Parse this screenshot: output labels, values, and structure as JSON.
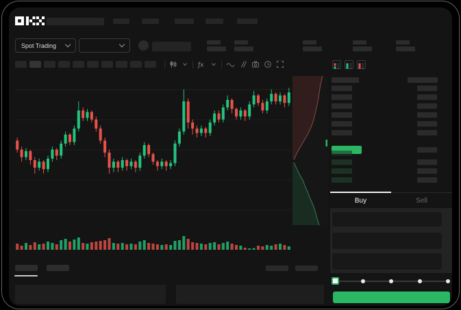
{
  "brand": {
    "name": "OKX"
  },
  "header": {
    "nav_placeholder_count": 5
  },
  "market_selector": {
    "label": "Spot Trading"
  },
  "ticker_stats": {
    "placeholder_pair_count": 5
  },
  "chart_toolbar": {
    "timeframe_placeholder_count": 10,
    "icons": [
      "chart-type-icon",
      "chevron-down-icon",
      "indicator-icon",
      "chevron-down-icon",
      "line-tool-icon",
      "parallel-lines-icon",
      "camera-icon",
      "clock-icon",
      "fullscreen-icon"
    ]
  },
  "colors": {
    "ui_green": "#2ab663",
    "candle_green": "#22c47e",
    "candle_red": "#e8524a",
    "app_bg": "#141414",
    "grid": "#1e1e1e"
  },
  "chart_data": {
    "type": "candlestick",
    "value_scale": [
      0,
      100
    ],
    "grid": true,
    "candles": [
      [
        58,
        52,
        60,
        50
      ],
      [
        52,
        47,
        54,
        44
      ],
      [
        47,
        51,
        53,
        45
      ],
      [
        51,
        45,
        52,
        42
      ],
      [
        45,
        40,
        47,
        36
      ],
      [
        40,
        44,
        46,
        38
      ],
      [
        44,
        39,
        45,
        36
      ],
      [
        39,
        46,
        48,
        37
      ],
      [
        46,
        52,
        54,
        44
      ],
      [
        52,
        48,
        53,
        45
      ],
      [
        48,
        56,
        58,
        46
      ],
      [
        56,
        62,
        64,
        54
      ],
      [
        62,
        57,
        63,
        55
      ],
      [
        57,
        66,
        68,
        55
      ],
      [
        66,
        78,
        84,
        64
      ],
      [
        78,
        73,
        80,
        71
      ],
      [
        73,
        77,
        79,
        71
      ],
      [
        77,
        72,
        78,
        70
      ],
      [
        72,
        66,
        74,
        64
      ],
      [
        66,
        58,
        68,
        56
      ],
      [
        58,
        50,
        60,
        47
      ],
      [
        50,
        40,
        52,
        36
      ],
      [
        40,
        44,
        46,
        37
      ],
      [
        44,
        40,
        45,
        37
      ],
      [
        40,
        45,
        47,
        38
      ],
      [
        45,
        41,
        46,
        38
      ],
      [
        41,
        44,
        46,
        39
      ],
      [
        44,
        40,
        45,
        37
      ],
      [
        40,
        48,
        50,
        38
      ],
      [
        48,
        55,
        57,
        46
      ],
      [
        55,
        49,
        56,
        47
      ],
      [
        49,
        44,
        50,
        42
      ],
      [
        44,
        41,
        45,
        38
      ],
      [
        41,
        44,
        46,
        39
      ],
      [
        44,
        41,
        45,
        38
      ],
      [
        41,
        43,
        45,
        39
      ],
      [
        43,
        56,
        58,
        41
      ],
      [
        56,
        64,
        66,
        54
      ],
      [
        64,
        84,
        92,
        62
      ],
      [
        84,
        70,
        86,
        66
      ],
      [
        70,
        66,
        72,
        62
      ],
      [
        66,
        63,
        68,
        60
      ],
      [
        63,
        66,
        68,
        61
      ],
      [
        66,
        63,
        67,
        60
      ],
      [
        63,
        70,
        72,
        61
      ],
      [
        70,
        76,
        78,
        68
      ],
      [
        76,
        72,
        78,
        70
      ],
      [
        72,
        80,
        82,
        70
      ],
      [
        80,
        85,
        88,
        78
      ],
      [
        85,
        79,
        86,
        76
      ],
      [
        79,
        74,
        80,
        72
      ],
      [
        74,
        78,
        80,
        72
      ],
      [
        78,
        74,
        79,
        71
      ],
      [
        74,
        82,
        84,
        72
      ],
      [
        82,
        88,
        91,
        80
      ],
      [
        88,
        83,
        89,
        81
      ],
      [
        83,
        78,
        85,
        76
      ],
      [
        78,
        84,
        86,
        76
      ],
      [
        84,
        89,
        92,
        82
      ],
      [
        89,
        84,
        90,
        82
      ],
      [
        84,
        88,
        90,
        82
      ],
      [
        88,
        83,
        89,
        80
      ],
      [
        83,
        90,
        93,
        81
      ]
    ],
    "volumes": [
      0.45,
      0.3,
      0.5,
      0.35,
      0.55,
      0.4,
      0.45,
      0.6,
      0.5,
      0.4,
      0.7,
      0.8,
      0.6,
      0.75,
      0.9,
      0.5,
      0.45,
      0.55,
      0.6,
      0.65,
      0.7,
      0.85,
      0.5,
      0.45,
      0.5,
      0.4,
      0.45,
      0.4,
      0.6,
      0.7,
      0.5,
      0.45,
      0.4,
      0.35,
      0.4,
      0.35,
      0.65,
      0.7,
      1.0,
      0.8,
      0.55,
      0.5,
      0.45,
      0.4,
      0.5,
      0.55,
      0.4,
      0.5,
      0.6,
      0.45,
      0.35,
      0.3,
      0.15,
      0.1,
      0.12,
      0.3,
      0.25,
      0.35,
      0.3,
      0.4,
      0.45,
      0.35,
      0.25
    ]
  },
  "depth_data": {
    "asks": [
      [
        0.86,
        0
      ],
      [
        0.8,
        0.06
      ],
      [
        0.76,
        0.12
      ],
      [
        0.72,
        0.18
      ],
      [
        0.66,
        0.24
      ],
      [
        0.6,
        0.3
      ],
      [
        0.52,
        0.35
      ],
      [
        0.44,
        0.39
      ],
      [
        0.34,
        0.43
      ],
      [
        0.24,
        0.47
      ],
      [
        0.12,
        0.52
      ],
      [
        0.04,
        0.56
      ]
    ],
    "bids": [
      [
        0.04,
        0.58
      ],
      [
        0.12,
        0.62
      ],
      [
        0.2,
        0.66
      ],
      [
        0.3,
        0.7
      ],
      [
        0.36,
        0.74
      ],
      [
        0.44,
        0.78
      ],
      [
        0.5,
        0.82
      ],
      [
        0.58,
        0.86
      ],
      [
        0.64,
        0.9
      ],
      [
        0.7,
        0.95
      ],
      [
        0.76,
        1.0
      ]
    ]
  },
  "order_book": {
    "view_icons": [
      "orderbook-split-view-icon",
      "orderbook-bids-view-icon",
      "orderbook-asks-view-icon"
    ],
    "ask_row_count": 6,
    "bid_row_count": 4,
    "bid_amount_row_count": 3
  },
  "order_panel": {
    "tabs": [
      {
        "label": "Buy",
        "active": true
      },
      {
        "label": "Sell",
        "active": false
      }
    ],
    "field_count": 3,
    "slider": {
      "positions": 5,
      "active_index": 0
    }
  },
  "bottom_section": {
    "tab_placeholder_count": 2,
    "right_placeholder_count": 2,
    "panel_count": 2
  }
}
